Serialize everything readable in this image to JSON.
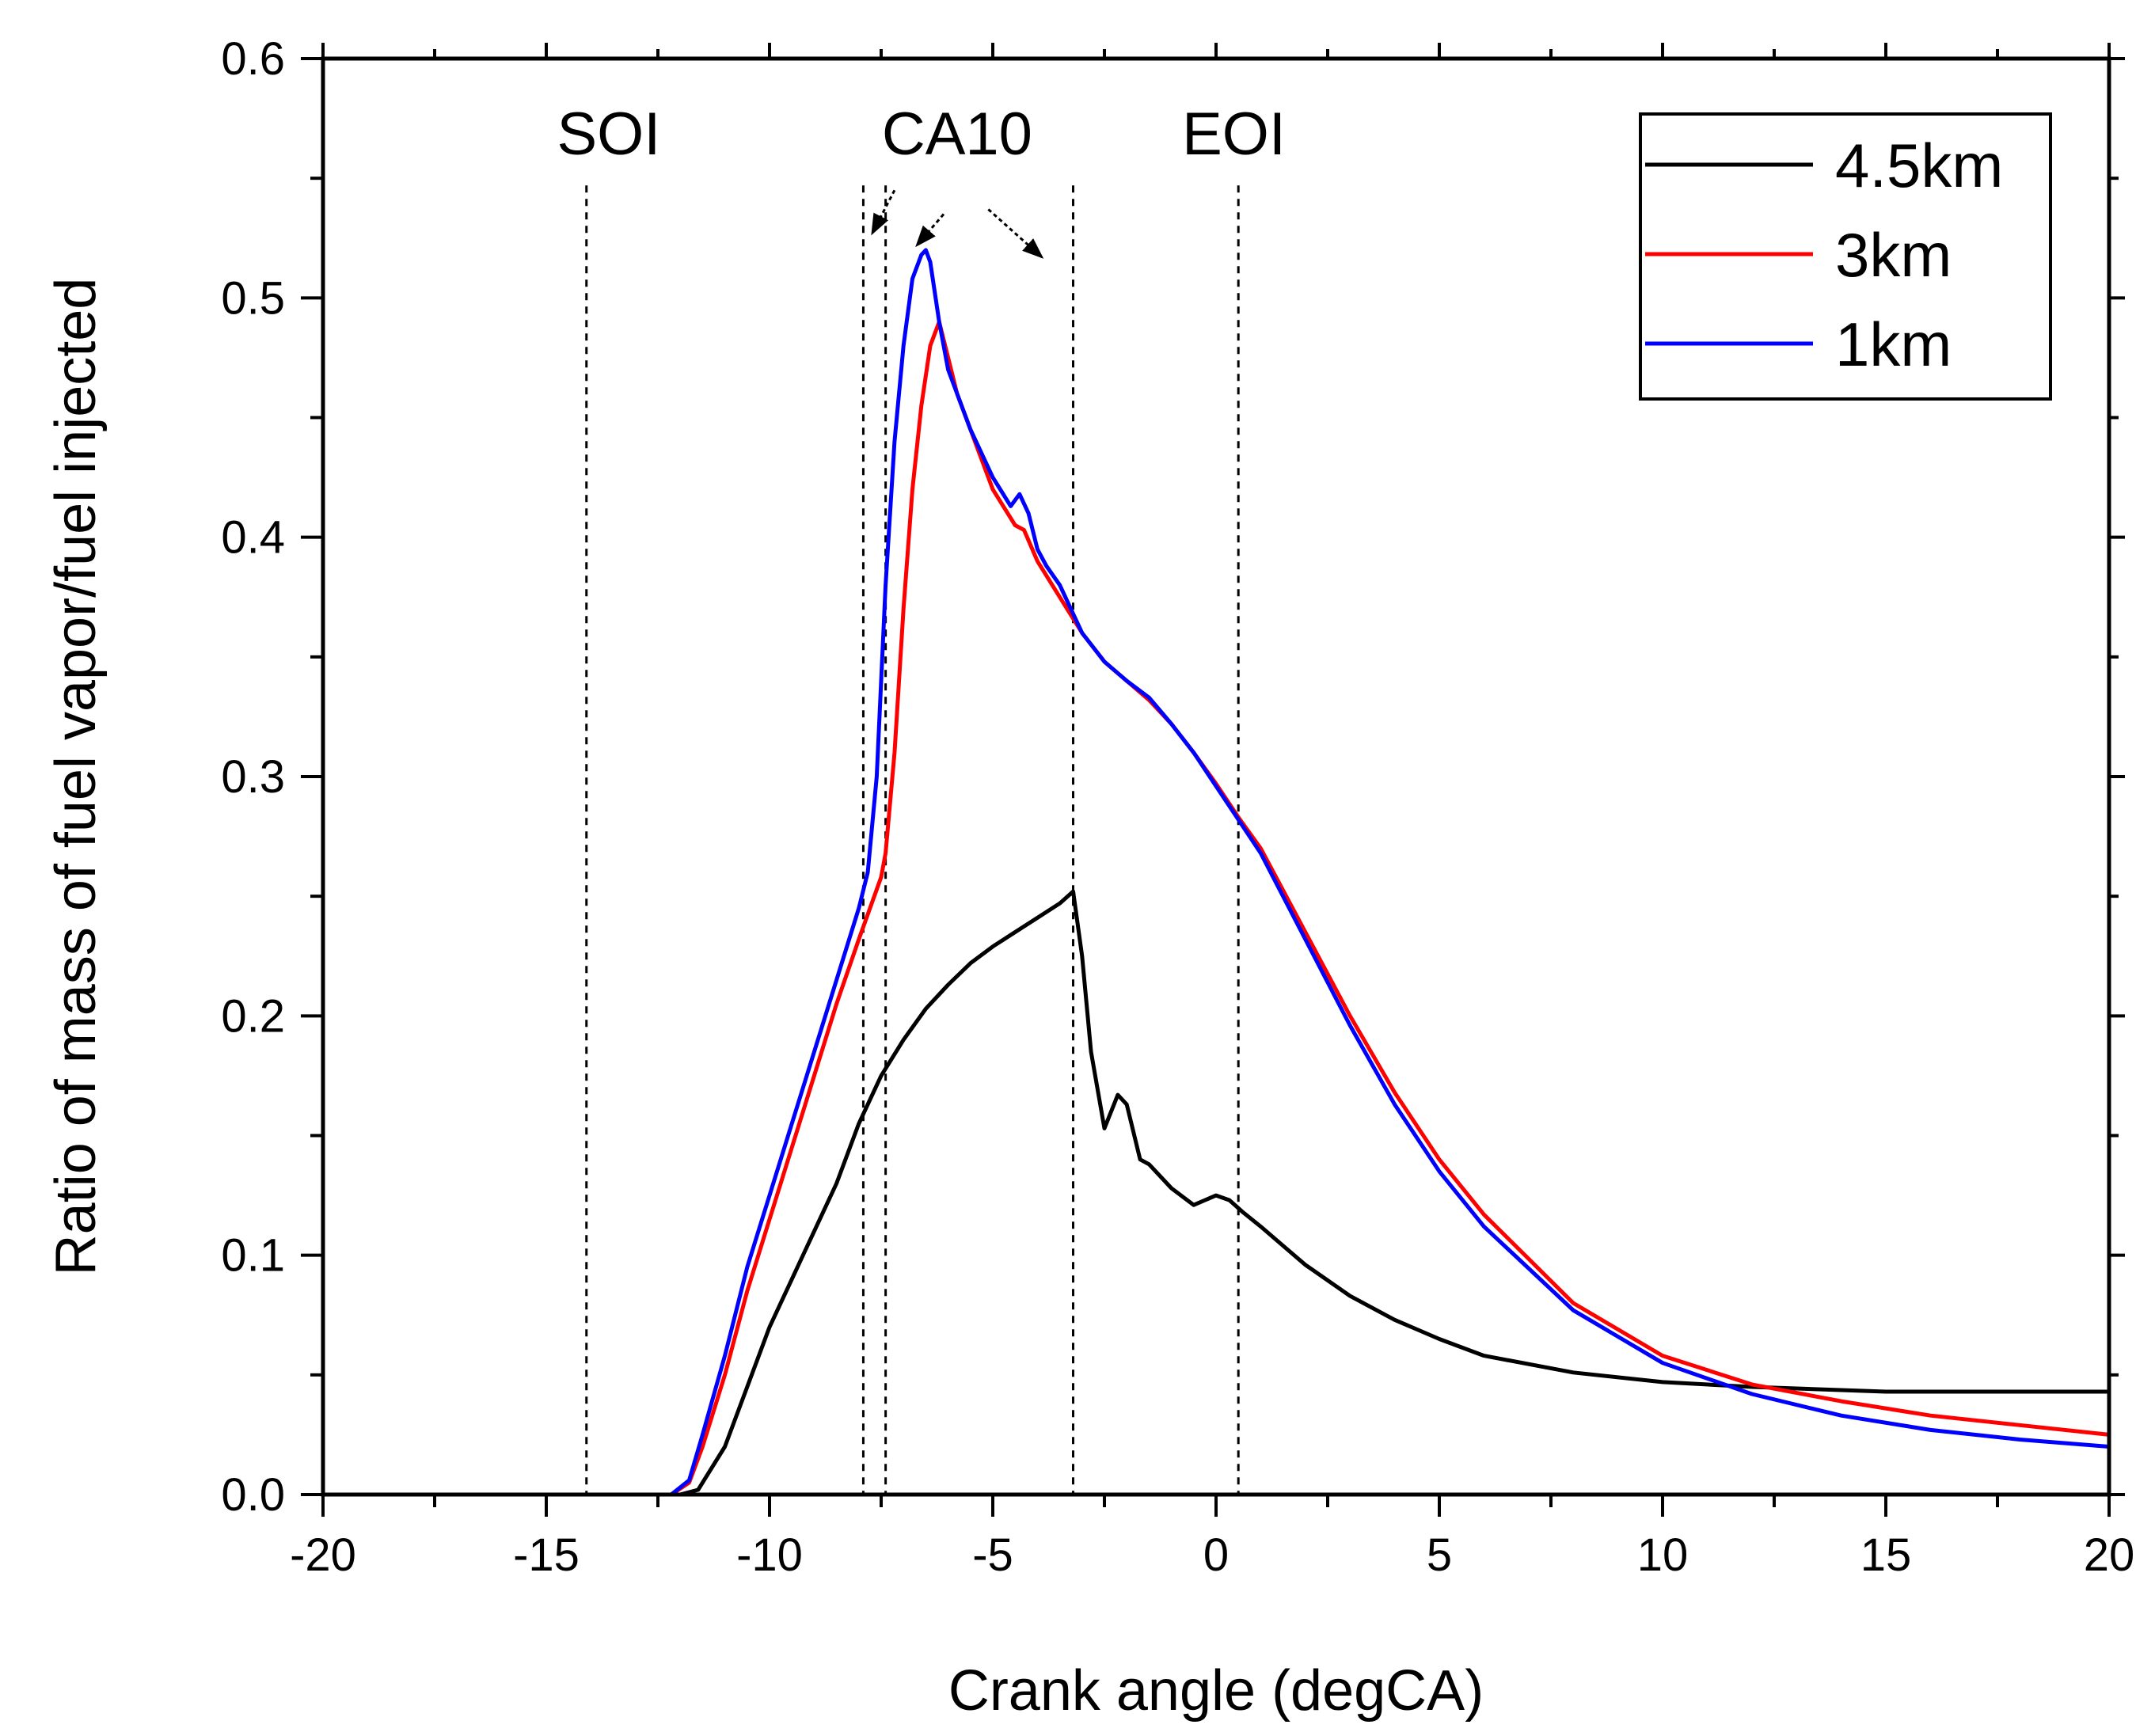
{
  "chart_data": {
    "type": "line",
    "title": "",
    "xlabel": "Crank angle (degCA)",
    "ylabel": "Ratio of mass of fuel vapor/fuel injected",
    "xlim": [
      -20,
      20
    ],
    "ylim": [
      0,
      0.6
    ],
    "grid": false,
    "legend_position": "top-right",
    "x_ticks": [
      -20,
      -15,
      -10,
      -5,
      0,
      5,
      10,
      15,
      20
    ],
    "x_tick_labels": [
      "-20",
      "-15",
      "-10",
      "-5",
      "0",
      "5",
      "10",
      "15",
      "20"
    ],
    "y_ticks": [
      0.0,
      0.1,
      0.2,
      0.3,
      0.4,
      0.5,
      0.6
    ],
    "y_tick_labels": [
      "0.0",
      "0.1",
      "0.2",
      "0.3",
      "0.4",
      "0.5",
      "0.6"
    ],
    "series": [
      {
        "name": "4.5km",
        "color": "#000000",
        "x": [
          -13.9,
          -12.0,
          -11.6,
          -11.0,
          -10.5,
          -10.0,
          -9.5,
          -9.0,
          -8.5,
          -8.0,
          -7.5,
          -7.0,
          -6.5,
          -6.0,
          -5.5,
          -5.0,
          -4.5,
          -4.0,
          -3.5,
          -3.2,
          -3.0,
          -2.8,
          -2.5,
          -2.2,
          -2.0,
          -1.7,
          -1.5,
          -1.0,
          -0.5,
          0.0,
          0.3,
          0.6,
          1.0,
          1.5,
          2.0,
          3.0,
          4.0,
          5.0,
          6.0,
          8.0,
          10.0,
          12.0,
          15.0,
          20.0
        ],
        "y": [
          0.0,
          0.0,
          0.002,
          0.02,
          0.045,
          0.07,
          0.09,
          0.11,
          0.13,
          0.155,
          0.175,
          0.19,
          0.203,
          0.213,
          0.222,
          0.229,
          0.235,
          0.241,
          0.247,
          0.252,
          0.225,
          0.185,
          0.153,
          0.167,
          0.163,
          0.14,
          0.138,
          0.128,
          0.121,
          0.125,
          0.123,
          0.118,
          0.112,
          0.104,
          0.096,
          0.083,
          0.073,
          0.065,
          0.058,
          0.051,
          0.047,
          0.045,
          0.043,
          0.043
        ]
      },
      {
        "name": "3km",
        "color": "#ff0000",
        "x": [
          -13.9,
          -12.2,
          -11.8,
          -11.5,
          -11.0,
          -10.5,
          -10.0,
          -9.5,
          -9.0,
          -8.5,
          -8.0,
          -7.5,
          -7.4,
          -7.2,
          -7.0,
          -6.8,
          -6.6,
          -6.4,
          -6.2,
          -6.0,
          -5.8,
          -5.5,
          -5.0,
          -4.5,
          -4.3,
          -4.0,
          -3.5,
          -3.0,
          -2.5,
          -2.0,
          -1.5,
          -1.0,
          -0.5,
          0.0,
          0.5,
          1.0,
          2.0,
          3.0,
          4.0,
          5.0,
          6.0,
          8.0,
          10.0,
          12.0,
          14.0,
          16.0,
          18.0,
          20.0
        ],
        "y": [
          0.0,
          0.0,
          0.005,
          0.02,
          0.05,
          0.085,
          0.115,
          0.145,
          0.175,
          0.205,
          0.232,
          0.258,
          0.268,
          0.31,
          0.37,
          0.42,
          0.455,
          0.48,
          0.49,
          0.475,
          0.46,
          0.445,
          0.42,
          0.405,
          0.403,
          0.39,
          0.375,
          0.36,
          0.348,
          0.34,
          0.332,
          0.322,
          0.31,
          0.297,
          0.283,
          0.27,
          0.235,
          0.2,
          0.168,
          0.14,
          0.117,
          0.08,
          0.058,
          0.046,
          0.039,
          0.033,
          0.029,
          0.025
        ]
      },
      {
        "name": "1km",
        "color": "#0000ff",
        "x": [
          -13.9,
          -12.2,
          -11.8,
          -11.5,
          -11.0,
          -10.5,
          -10.0,
          -9.5,
          -9.0,
          -8.5,
          -8.0,
          -7.8,
          -7.6,
          -7.4,
          -7.2,
          -7.0,
          -6.8,
          -6.6,
          -6.5,
          -6.4,
          -6.2,
          -6.0,
          -5.8,
          -5.5,
          -5.0,
          -4.6,
          -4.4,
          -4.2,
          -4.0,
          -3.8,
          -3.5,
          -3.0,
          -2.5,
          -2.0,
          -1.5,
          -1.0,
          -0.5,
          0.0,
          0.5,
          1.0,
          2.0,
          3.0,
          4.0,
          5.0,
          6.0,
          8.0,
          10.0,
          12.0,
          14.0,
          16.0,
          18.0,
          20.0
        ],
        "y": [
          0.0,
          0.0,
          0.006,
          0.025,
          0.058,
          0.095,
          0.125,
          0.155,
          0.185,
          0.215,
          0.245,
          0.26,
          0.3,
          0.38,
          0.44,
          0.48,
          0.508,
          0.518,
          0.52,
          0.515,
          0.49,
          0.47,
          0.46,
          0.445,
          0.425,
          0.413,
          0.418,
          0.41,
          0.395,
          0.388,
          0.38,
          0.36,
          0.348,
          0.34,
          0.333,
          0.322,
          0.31,
          0.296,
          0.282,
          0.268,
          0.232,
          0.196,
          0.163,
          0.135,
          0.112,
          0.077,
          0.055,
          0.042,
          0.033,
          0.027,
          0.023,
          0.02
        ]
      }
    ],
    "vertical_markers": [
      {
        "label": "SOI",
        "x": -14.1,
        "label_x": -13.6
      },
      {
        "label": "",
        "x": -7.9
      },
      {
        "label": "",
        "x": -7.4
      },
      {
        "label": "",
        "x": -3.2
      },
      {
        "label": "EOI",
        "x": 0.5,
        "label_x": 0.4
      }
    ],
    "annotations": [
      {
        "text": "CA10",
        "x": -5.8,
        "y": 0.56
      }
    ],
    "arrows": [
      {
        "from": [
          -7.2,
          0.545
        ],
        "to": [
          -7.7,
          0.527
        ]
      },
      {
        "from": [
          -6.1,
          0.535
        ],
        "to": [
          -6.7,
          0.522
        ]
      },
      {
        "from": [
          -5.1,
          0.537
        ],
        "to": [
          -3.9,
          0.517
        ]
      }
    ]
  }
}
